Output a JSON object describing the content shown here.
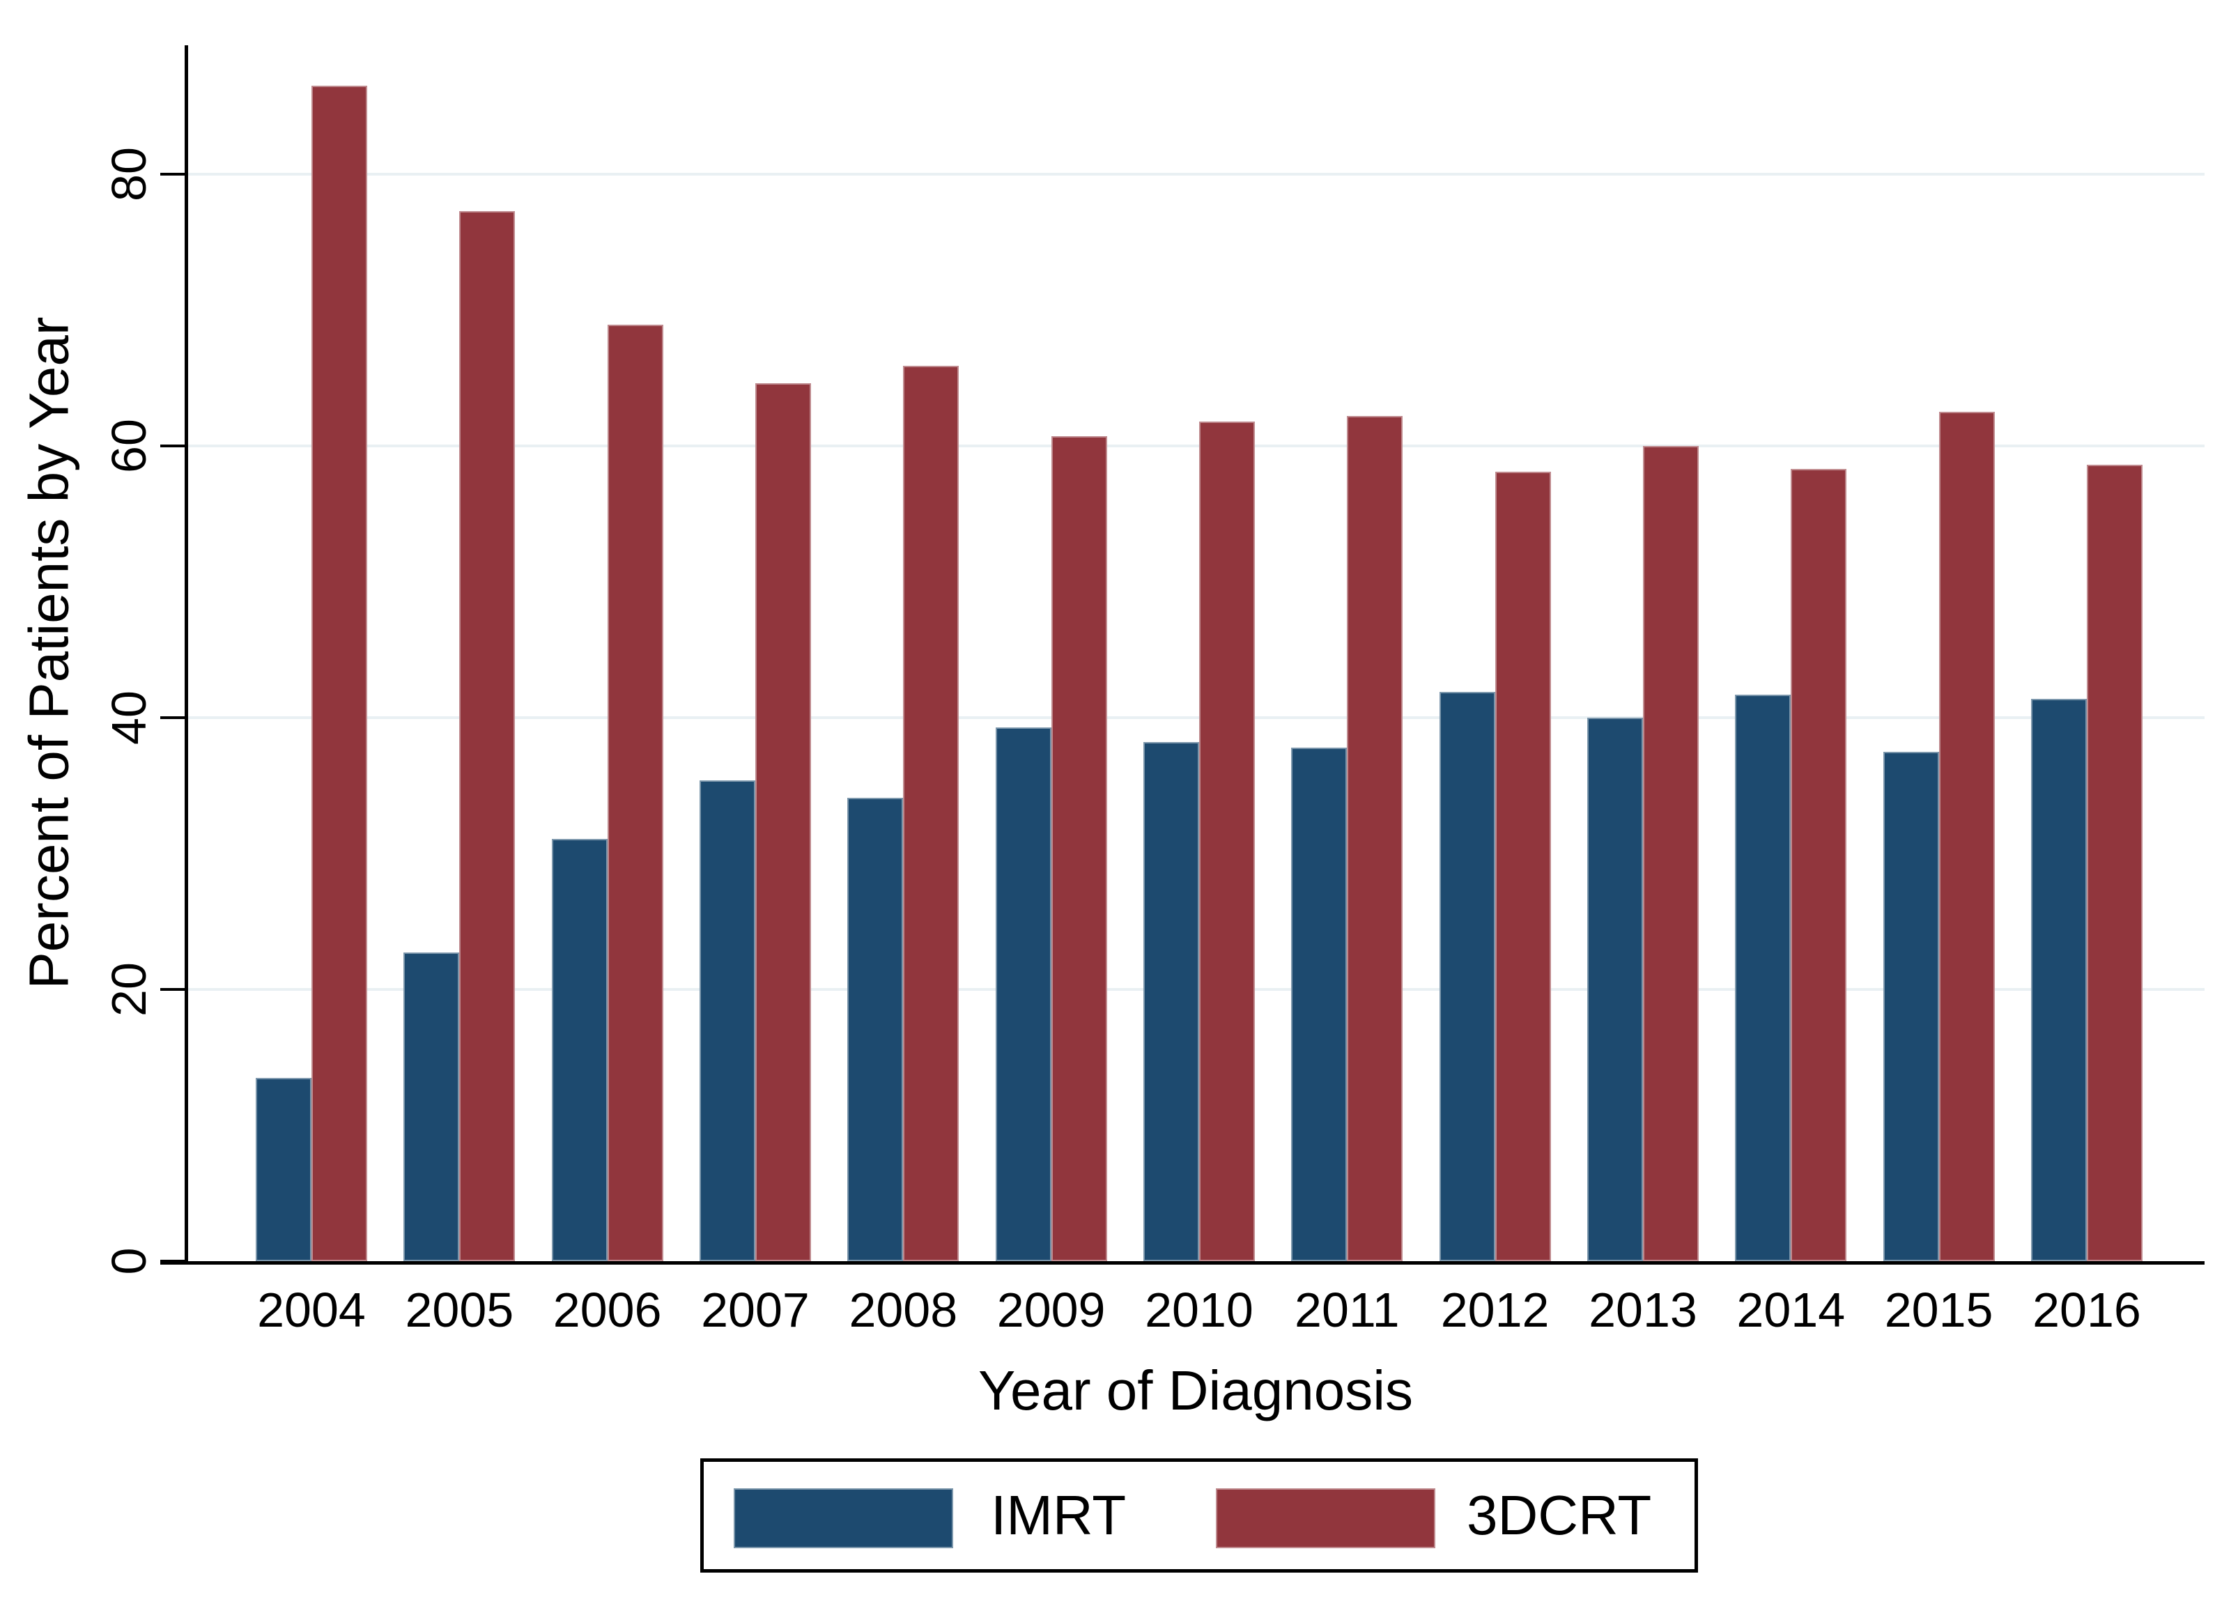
{
  "chart_data": {
    "type": "bar",
    "title": "",
    "xlabel": "Year of Diagnosis",
    "ylabel": "Percent of Patients by Year",
    "categories": [
      "2004",
      "2005",
      "2006",
      "2007",
      "2008",
      "2009",
      "2010",
      "2011",
      "2012",
      "2013",
      "2014",
      "2015",
      "2016"
    ],
    "series": [
      {
        "name": "IMRT",
        "color": "#1d4a6f",
        "values": [
          13.5,
          22.7,
          31.1,
          35.4,
          34.1,
          39.3,
          38.2,
          37.8,
          41.9,
          40.0,
          41.7,
          37.5,
          41.4
        ]
      },
      {
        "name": "3DCRT",
        "color": "#91363d",
        "values": [
          86.5,
          77.3,
          68.9,
          64.6,
          65.9,
          60.7,
          61.8,
          62.2,
          58.1,
          60.0,
          58.3,
          62.5,
          58.6
        ]
      }
    ],
    "ylim": [
      0,
      89.5
    ],
    "yticks": [
      0,
      20,
      40,
      60,
      80
    ],
    "grid": true,
    "gridcolor": "#e9f0f3",
    "legend_position": "bottom-outside"
  },
  "axes": {
    "x_title": "Year of Diagnosis",
    "y_title": "Percent of Patients by Year",
    "y_tick_labels": [
      "0",
      "20",
      "40",
      "60",
      "80"
    ]
  },
  "legend": {
    "items": [
      {
        "label": "IMRT",
        "color": "#1d4a6f"
      },
      {
        "label": "3DCRT",
        "color": "#91363d"
      }
    ]
  }
}
